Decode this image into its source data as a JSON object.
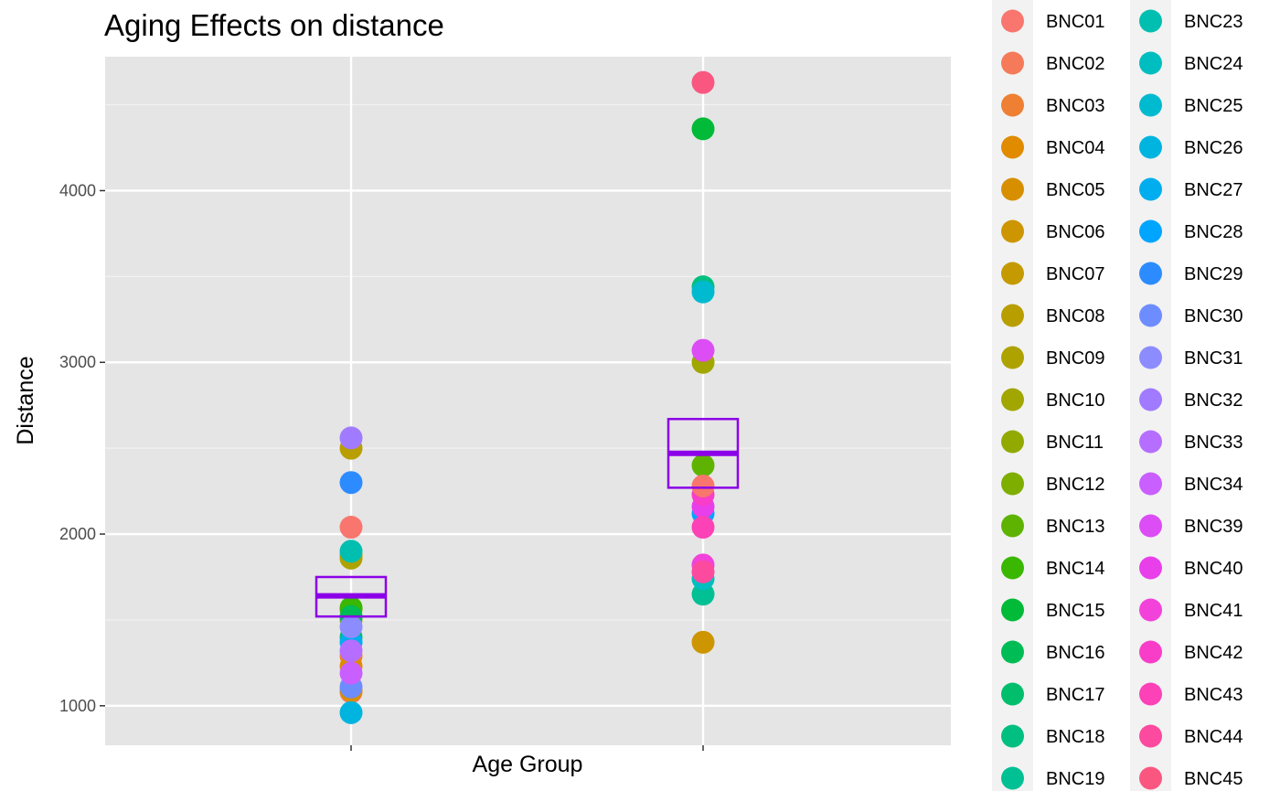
{
  "chart_data": {
    "type": "scatter",
    "title": "Aging Effects on distance",
    "xlabel": "Age Group",
    "ylabel": "Distance",
    "ylim": [
      770,
      4780
    ],
    "yticks": [
      1000,
      2000,
      3000,
      4000
    ],
    "grid": true,
    "legend_position": "right",
    "groups": [
      "",
      ""
    ],
    "series": [
      {
        "name": "BNC01",
        "color": "#F8766D",
        "group": 0,
        "y": 2040
      },
      {
        "name": "BNC02",
        "color": "#F47A59",
        "group": 0,
        "y": 1080
      },
      {
        "name": "BNC03",
        "color": "#EE7F33",
        "group": 0,
        "y": 1290
      },
      {
        "name": "BNC04",
        "color": "#E08B00",
        "group": 0,
        "y": 1230
      },
      {
        "name": "BNC05",
        "color": "#D78F00",
        "group": 0,
        "y": 1090
      },
      {
        "name": "BNC06",
        "color": "#CD9600",
        "group": 1,
        "y": 1370
      },
      {
        "name": "BNC07",
        "color": "#C49A00",
        "group": 0,
        "y": 1880
      },
      {
        "name": "BNC08",
        "color": "#B99E00",
        "group": 0,
        "y": 2500
      },
      {
        "name": "BNC09",
        "color": "#AEA200",
        "group": 0,
        "y": 1860
      },
      {
        "name": "BNC10",
        "color": "#A1A600",
        "group": 1,
        "y": 3000
      },
      {
        "name": "BNC11",
        "color": "#92AA00",
        "group": 0,
        "y": 1500
      },
      {
        "name": "BNC12",
        "color": "#7DAE00",
        "group": 0,
        "y": 1560
      },
      {
        "name": "BNC13",
        "color": "#5EB300",
        "group": 1,
        "y": 2400
      },
      {
        "name": "BNC14",
        "color": "#3AB700",
        "group": 0,
        "y": 1570
      },
      {
        "name": "BNC15",
        "color": "#00BA38",
        "group": 1,
        "y": 4360
      },
      {
        "name": "BNC16",
        "color": "#00BC55",
        "group": 0,
        "y": 1520
      },
      {
        "name": "BNC17",
        "color": "#00BE6C",
        "group": 0,
        "y": 1400
      },
      {
        "name": "BNC18",
        "color": "#00BF80",
        "group": 1,
        "y": 3440
      },
      {
        "name": "BNC19",
        "color": "#00C094",
        "group": 1,
        "y": 1650
      },
      {
        "name": "BNC23",
        "color": "#00BFB0",
        "group": 0,
        "y": 1900
      },
      {
        "name": "BNC24",
        "color": "#00BDC0",
        "group": 1,
        "y": 1740
      },
      {
        "name": "BNC25",
        "color": "#00BAD0",
        "group": 1,
        "y": 3410
      },
      {
        "name": "BNC26",
        "color": "#00B4E0",
        "group": 0,
        "y": 960
      },
      {
        "name": "BNC27",
        "color": "#00ADEE",
        "group": 0,
        "y": 1370
      },
      {
        "name": "BNC28",
        "color": "#00A5FF",
        "group": 1,
        "y": 2120
      },
      {
        "name": "BNC29",
        "color": "#2C8CFF",
        "group": 0,
        "y": 2300
      },
      {
        "name": "BNC30",
        "color": "#6D8DFF",
        "group": 0,
        "y": 1110
      },
      {
        "name": "BNC31",
        "color": "#8C8CFF",
        "group": 0,
        "y": 1460
      },
      {
        "name": "BNC32",
        "color": "#A07BFF",
        "group": 0,
        "y": 2560
      },
      {
        "name": "BNC33",
        "color": "#B56EFF",
        "group": 0,
        "y": 1320
      },
      {
        "name": "BNC34",
        "color": "#C95FFF",
        "group": 0,
        "y": 1190
      },
      {
        "name": "BNC39",
        "color": "#DC4DF5",
        "group": 1,
        "y": 3070
      },
      {
        "name": "BNC40",
        "color": "#E83FEA",
        "group": 1,
        "y": 2160
      },
      {
        "name": "BNC41",
        "color": "#F242D9",
        "group": 1,
        "y": 1820
      },
      {
        "name": "BNC42",
        "color": "#F83DC8",
        "group": 1,
        "y": 2230
      },
      {
        "name": "BNC43",
        "color": "#FC42B6",
        "group": 1,
        "y": 2040
      },
      {
        "name": "BNC44",
        "color": "#FC4A9F",
        "group": 1,
        "y": 1780
      },
      {
        "name": "BNC45",
        "color": "#FA5780",
        "group": 1,
        "y": 4630
      },
      {
        "name": "",
        "color": "#F8766D",
        "group": 1,
        "y": 2280
      }
    ],
    "summary": [
      {
        "group": 0,
        "mean": 1640,
        "lower": 1520,
        "upper": 1750,
        "color": "#8B00E8"
      },
      {
        "group": 1,
        "mean": 2470,
        "lower": 2270,
        "upper": 2670,
        "color": "#8B00E8"
      }
    ]
  }
}
